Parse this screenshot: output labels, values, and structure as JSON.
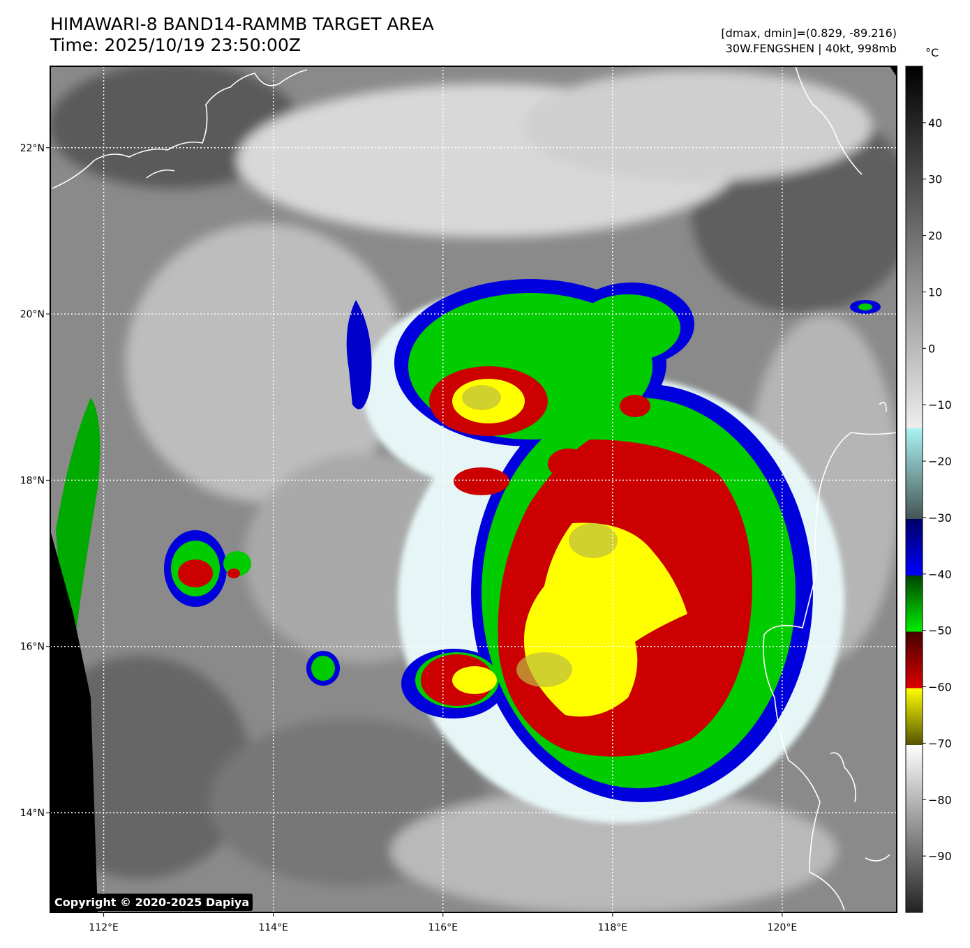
{
  "title": {
    "line1": "HIMAWARI-8 BAND14-RAMMB TARGET AREA",
    "line2": "Time: 2025/10/19 23:50:00Z"
  },
  "info": {
    "dmax_dmin": "[dmax, dmin]=(0.829, -89.216)",
    "storm": "30W.FENGSHEN | 40kt, 998mb"
  },
  "colorbar": {
    "unit": "°C",
    "range": [
      -100,
      50
    ],
    "ticks": [
      40,
      30,
      20,
      10,
      0,
      -10,
      -20,
      -30,
      -40,
      -50,
      -60,
      -70,
      -80,
      -90
    ],
    "tick_labels": [
      "40",
      "30",
      "20",
      "10",
      "0",
      "−10",
      "−20",
      "−30",
      "−40",
      "−50",
      "−60",
      "−70",
      "−80",
      "−90"
    ],
    "palette": {
      "black": "#000000",
      "white": "#ffffff",
      "cyan": "#aaf2f2",
      "blue": "#0000cc",
      "green": "#00cc00",
      "red": "#cc0000",
      "yellow": "#ffff00"
    }
  },
  "map": {
    "lon_range": [
      111.37,
      121.35
    ],
    "lat_range": [
      12.8,
      22.98
    ],
    "lon_ticks": [
      112,
      114,
      116,
      118,
      120
    ],
    "lon_labels": [
      "112°E",
      "114°E",
      "116°E",
      "118°E",
      "120°E"
    ],
    "lat_ticks": [
      22,
      20,
      18,
      16,
      14
    ],
    "lat_labels": [
      "22°N",
      "20°N",
      "18°N",
      "16°N",
      "14°N"
    ]
  },
  "copyright": "Copyright © 2020-2025 Dapiya"
}
